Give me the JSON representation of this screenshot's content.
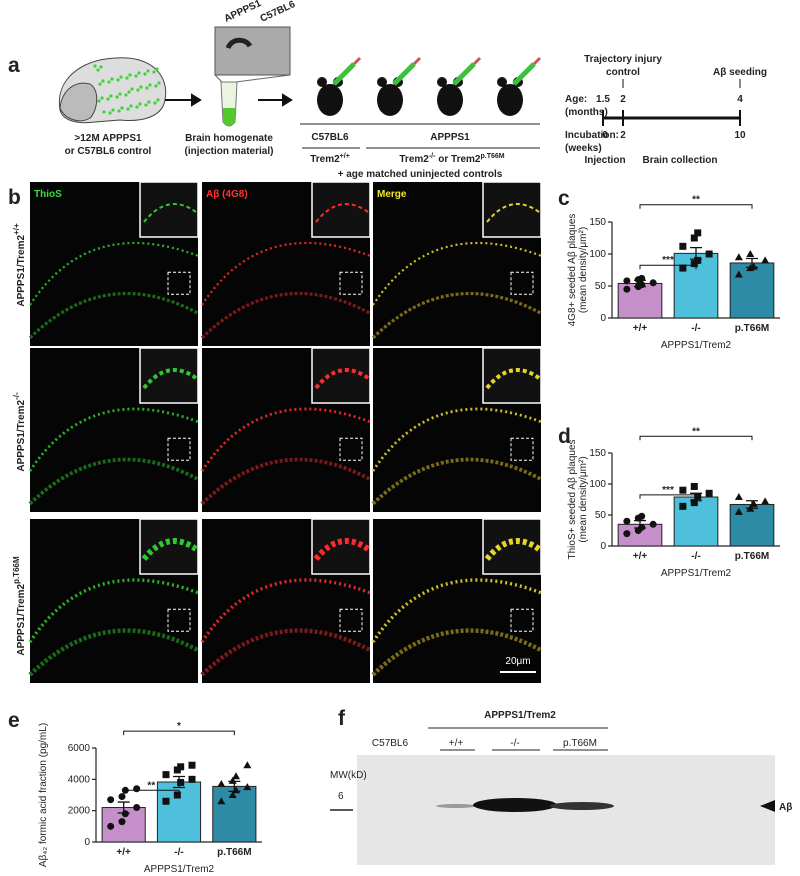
{
  "panel_labels": [
    "a",
    "b",
    "c",
    "d",
    "e",
    "f"
  ],
  "panel_a": {
    "blot_labels": [
      "APPPS1",
      "C57BL6"
    ],
    "source": [
      ">12M APPPS1",
      "or C57BL6 control"
    ],
    "homogenate": [
      "Brain homogenate",
      "(injection material)"
    ],
    "group_c57": "C57BL6",
    "group_appps1": "APPPS1",
    "trem_wt": {
      "text": "Trem2",
      "sup": "+/+"
    },
    "trem_mut": {
      "text1": "Trem2",
      "sup1": "-/-",
      "mid": " or Trem2",
      "sup2": "p.T66M"
    },
    "controls": "+ age matched uninjected controls",
    "timeline": {
      "injury": [
        "Trajectory injury",
        "control"
      ],
      "seeding": "Aβ seeding",
      "age_label": [
        "Age:",
        "(months)"
      ],
      "ages": [
        1.5,
        2,
        4
      ],
      "incubation_label": [
        "Incubation:",
        "(weeks)"
      ],
      "weeks": [
        0,
        2,
        10
      ],
      "injection": "Injection",
      "collection": "Brain collection"
    }
  },
  "panel_b": {
    "columns": [
      "ThioS",
      "Aβ (4G8)",
      "Merge"
    ],
    "rows": [
      {
        "text": "APPPS1/Trem2",
        "sup": "+/+"
      },
      {
        "text": "APPPS1/Trem2",
        "sup": "-/-"
      },
      {
        "text": "APPPS1/Trem2",
        "sup": "p.T66M"
      }
    ],
    "scale": "20μm"
  },
  "panel_f": {
    "group": "APPPS1/Trem2",
    "lanes": [
      "C57BL6",
      "+/+",
      "-/-",
      "p.T66M"
    ],
    "mw": "MW(kD)",
    "marker": "6",
    "band": "Aβ"
  },
  "chart_data": [
    {
      "type": "bar",
      "ylabel": [
        "4G8+ seeded Aβ plaques",
        "(mean density/μm²)"
      ],
      "xlabel": "APPPS1/Trem2",
      "categories": [
        "+/+",
        "-/-",
        "p.T66M"
      ],
      "values": [
        54,
        101,
        86
      ],
      "errors": [
        5,
        9,
        7
      ],
      "colors": [
        "#c590c9",
        "#4fc0dc",
        "#2d8ba5"
      ],
      "markers": [
        "circle",
        "square",
        "triangle"
      ],
      "points": [
        [
          45,
          49,
          52,
          55,
          58,
          60,
          62
        ],
        [
          78,
          85,
          90,
          100,
          112,
          125,
          133
        ],
        [
          68,
          78,
          80,
          90,
          95,
          100
        ]
      ],
      "ylim": [
        0,
        150
      ],
      "yticks": [
        0,
        50,
        100,
        150
      ],
      "brackets": [
        {
          "label": "***",
          "between": [
            "+/+",
            "-/-"
          ]
        },
        {
          "label": "**",
          "between": [
            "+/+",
            "p.T66M"
          ]
        }
      ]
    },
    {
      "type": "bar",
      "ylabel": [
        "ThioS+ seeded Aβ plaques",
        "(mean density/μm²)"
      ],
      "xlabel": "APPPS1/Trem2",
      "categories": [
        "+/+",
        "-/-",
        "p.T66M"
      ],
      "values": [
        35,
        79,
        67
      ],
      "errors": [
        6,
        6,
        6
      ],
      "colors": [
        "#c590c9",
        "#4fc0dc",
        "#2d8ba5"
      ],
      "markers": [
        "circle",
        "square",
        "triangle"
      ],
      "points": [
        [
          20,
          25,
          30,
          35,
          40,
          45,
          48
        ],
        [
          64,
          70,
          80,
          85,
          90,
          96
        ],
        [
          55,
          60,
          68,
          72,
          79
        ]
      ],
      "ylim": [
        0,
        150
      ],
      "yticks": [
        0,
        50,
        100,
        150
      ],
      "brackets": [
        {
          "label": "***",
          "between": [
            "+/+",
            "-/-"
          ]
        },
        {
          "label": "**",
          "between": [
            "+/+",
            "p.T66M"
          ]
        }
      ]
    },
    {
      "type": "bar",
      "ylabel": [
        "Aβ₄₂ formic acid fraction (pg/mL)"
      ],
      "xlabel": "APPPS1/Trem2",
      "categories": [
        "+/+",
        "-/-",
        "p.T66M"
      ],
      "values": [
        2200,
        3830,
        3550
      ],
      "errors": [
        350,
        350,
        320
      ],
      "colors": [
        "#c590c9",
        "#4fc0dc",
        "#2d8ba5"
      ],
      "markers": [
        "circle",
        "square",
        "triangle"
      ],
      "points": [
        [
          1000,
          1300,
          1800,
          2200,
          2700,
          2900,
          3300,
          3400
        ],
        [
          2600,
          3000,
          3800,
          4000,
          4300,
          4600,
          4800,
          4900
        ],
        [
          2600,
          3000,
          3300,
          3500,
          3700,
          3900,
          4200,
          4900
        ]
      ],
      "ylim": [
        0,
        6000
      ],
      "yticks": [
        0,
        2000,
        4000,
        6000
      ],
      "brackets": [
        {
          "label": "**",
          "between": [
            "+/+",
            "-/-"
          ]
        },
        {
          "label": "*",
          "between": [
            "+/+",
            "p.T66M"
          ]
        }
      ]
    }
  ]
}
